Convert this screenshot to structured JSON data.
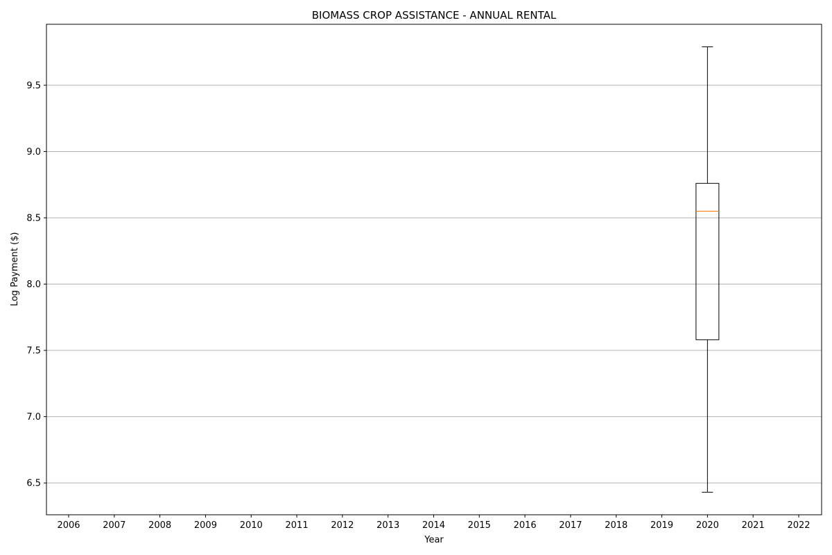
{
  "chart_data": {
    "type": "box",
    "title": "BIOMASS CROP ASSISTANCE - ANNUAL RENTAL",
    "xlabel": "Year",
    "ylabel": "Log Payment ($)",
    "categories": [
      "2006",
      "2007",
      "2008",
      "2009",
      "2010",
      "2011",
      "2012",
      "2013",
      "2014",
      "2015",
      "2016",
      "2017",
      "2018",
      "2019",
      "2020",
      "2021",
      "2022"
    ],
    "y_ticks": [
      "6.5",
      "7.0",
      "7.5",
      "8.0",
      "8.5",
      "9.0",
      "9.5"
    ],
    "ylim": [
      6.26,
      9.96
    ],
    "grid": "y",
    "boxes": [
      {
        "category": "2020",
        "whisker_low": 6.43,
        "q1": 7.58,
        "median": 8.55,
        "q3": 8.76,
        "whisker_high": 9.79
      }
    ],
    "colors": {
      "box": "#000000",
      "median": "#ff7f0e",
      "grid": "#b0b0b0"
    }
  }
}
